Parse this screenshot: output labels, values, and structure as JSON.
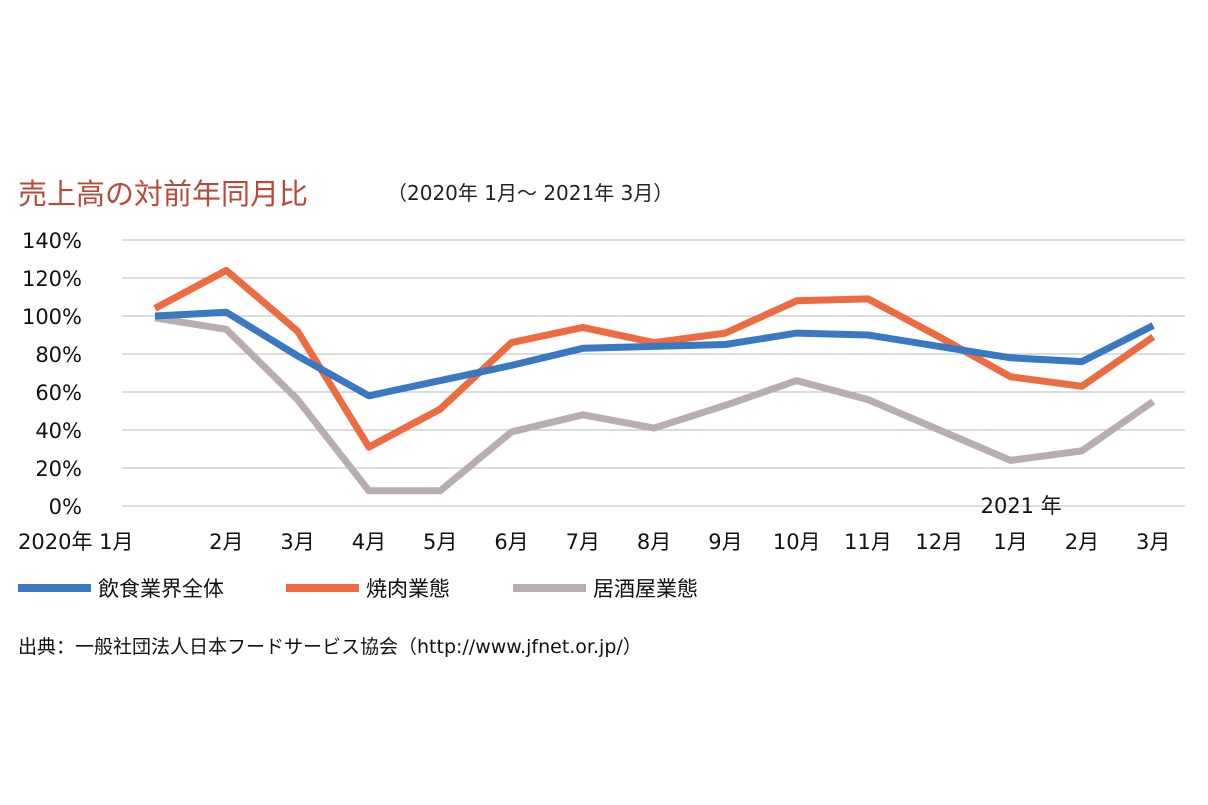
{
  "chart_data": {
    "type": "line",
    "title": "売上高の対前年同月比",
    "subtitle": "（2020年 1月～ 2021年 3月）",
    "categories": [
      "2020年 1月",
      "2月",
      "3月",
      "4月",
      "5月",
      "6月",
      "7月",
      "8月",
      "9月",
      "10月",
      "11月",
      "12月",
      "1月",
      "2月",
      "3月"
    ],
    "year_marker": {
      "label": "2021 年",
      "category_index": 12
    },
    "ylim": [
      0,
      140
    ],
    "yticks": [
      "0%",
      "20%",
      "40%",
      "60%",
      "80%",
      "100%",
      "120%",
      "140%"
    ],
    "ytick_values": [
      0,
      20,
      40,
      60,
      80,
      100,
      120,
      140
    ],
    "grid": true,
    "legend_position": "bottom-left",
    "series": [
      {
        "name": "飲食業界全体",
        "color": "#3a78c2",
        "values": [
          100,
          102,
          79,
          58,
          66,
          74,
          83,
          84,
          85,
          91,
          90,
          84,
          78,
          76,
          95
        ]
      },
      {
        "name": "焼肉業態",
        "color": "#ec6b41",
        "values": [
          104,
          124,
          92,
          31,
          51,
          86,
          94,
          86,
          91,
          108,
          109,
          89,
          68,
          63,
          89
        ]
      },
      {
        "name": "居酒屋業態",
        "color": "#b8aeae",
        "values": [
          99,
          93,
          56,
          8,
          8,
          39,
          48,
          41,
          53,
          66,
          56,
          40,
          24,
          29,
          55
        ]
      }
    ]
  },
  "source": "出典：一般社団法人日本フードサービス協会（http://www.jfnet.or.jp/）"
}
